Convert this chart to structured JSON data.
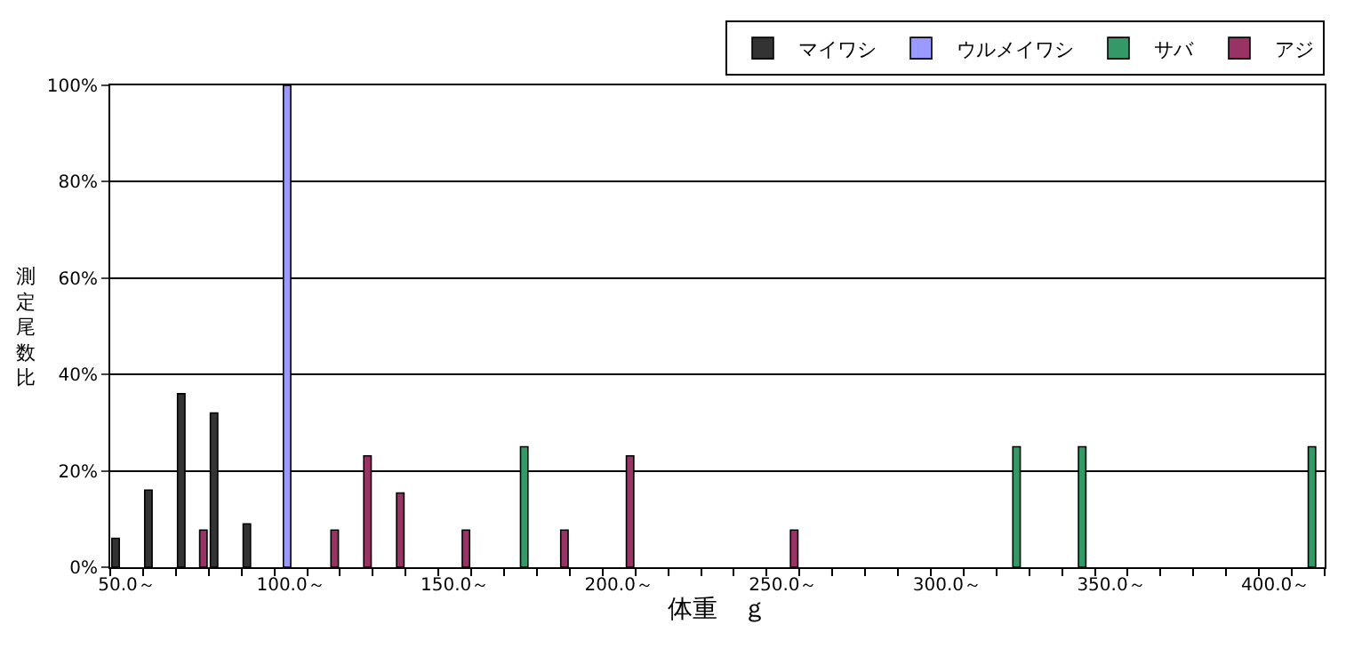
{
  "chart_data": {
    "type": "bar",
    "xlabel": "体重　ｇ",
    "ylabel": "測定尾数比",
    "categories": [
      "50.0～",
      null,
      null,
      null,
      null,
      "100.0～",
      null,
      null,
      null,
      null,
      "150.0～",
      null,
      null,
      null,
      null,
      "200.0～",
      null,
      null,
      null,
      null,
      "250.0～",
      null,
      null,
      null,
      null,
      "300.0～",
      null,
      null,
      null,
      null,
      "350.0～",
      null,
      null,
      null,
      null,
      "400.0～",
      null
    ],
    "series": [
      {
        "name": "マイワシ",
        "color": "#333333",
        "values": [
          6,
          16,
          36,
          32,
          9,
          null,
          null,
          null,
          null,
          null,
          null,
          null,
          null,
          null,
          null,
          null,
          null,
          null,
          null,
          null,
          null,
          null,
          null,
          null,
          null,
          null,
          null,
          null,
          null,
          null,
          null,
          null,
          null,
          null,
          null,
          null,
          null
        ]
      },
      {
        "name": "ウルメイワシ",
        "color": "#9999ff",
        "values": [
          null,
          null,
          null,
          null,
          null,
          100,
          null,
          null,
          null,
          null,
          null,
          null,
          null,
          null,
          null,
          null,
          null,
          null,
          null,
          null,
          null,
          null,
          null,
          null,
          null,
          null,
          null,
          null,
          null,
          null,
          null,
          null,
          null,
          null,
          null,
          null,
          null
        ]
      },
      {
        "name": "サバ",
        "color": "#339966",
        "values": [
          null,
          null,
          null,
          null,
          null,
          null,
          null,
          null,
          null,
          null,
          null,
          null,
          25,
          null,
          null,
          null,
          null,
          null,
          null,
          null,
          null,
          null,
          null,
          null,
          null,
          null,
          null,
          25,
          null,
          25,
          null,
          null,
          null,
          null,
          null,
          null,
          25
        ]
      },
      {
        "name": "アジ",
        "color": "#993366",
        "values": [
          null,
          null,
          7.7,
          null,
          null,
          null,
          7.7,
          23.1,
          15.4,
          null,
          7.7,
          null,
          null,
          7.7,
          null,
          23.1,
          null,
          null,
          null,
          null,
          7.7,
          null,
          null,
          null,
          null,
          null,
          null,
          null,
          null,
          null,
          null,
          null,
          null,
          null,
          null,
          null,
          null
        ]
      }
    ],
    "ylim": [
      0,
      100
    ],
    "yticks": [
      {
        "value": 0,
        "label": "0%"
      },
      {
        "value": 20,
        "label": "20%"
      },
      {
        "value": 40,
        "label": "40%"
      },
      {
        "value": 60,
        "label": "60%"
      },
      {
        "value": 80,
        "label": "80%"
      },
      {
        "value": 100,
        "label": "100%"
      }
    ],
    "grid": "y",
    "legend": "top right"
  }
}
